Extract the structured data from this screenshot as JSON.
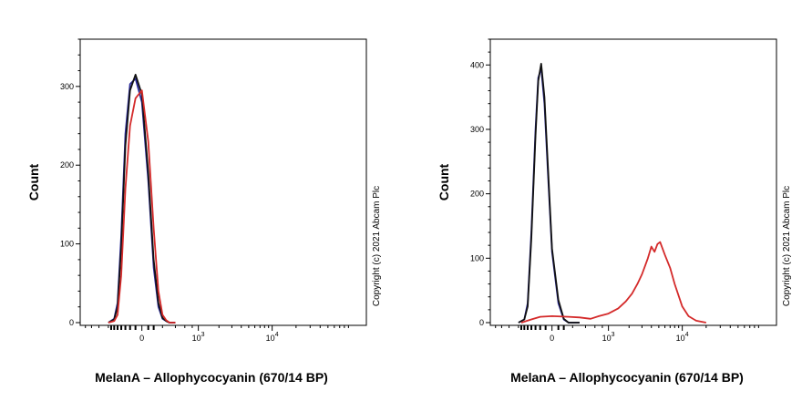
{
  "chart_data": [
    {
      "type": "line",
      "xlabel": "MelanA – Allophycocyanin (670/14 BP)",
      "ylabel": "Count",
      "copyright": "Copyright (c) 2021 Abcam Plc",
      "x_scale": "biexponential",
      "ylim": [
        0,
        360
      ],
      "y_ticks": [
        0,
        100,
        200,
        300
      ],
      "y_tick_labels": [
        "0",
        "100",
        "200",
        "300"
      ],
      "x_ticks": [
        0,
        1000,
        10000
      ],
      "x_tick_labels": [
        "0",
        "10^3",
        "10^4"
      ],
      "grid": false,
      "legend": "none",
      "series": [
        {
          "color": "#2a2a9a",
          "x": [
            -400,
            -300,
            -250,
            -200,
            -150,
            -100,
            -50,
            0,
            50,
            100,
            150,
            200,
            250,
            300,
            400
          ],
          "y": [
            0,
            5,
            25,
            110,
            240,
            303,
            310,
            280,
            180,
            70,
            20,
            5,
            2,
            0,
            0
          ]
        },
        {
          "color": "#111111",
          "x": [
            -400,
            -300,
            -250,
            -200,
            -150,
            -100,
            -50,
            0,
            50,
            100,
            150,
            200,
            250,
            300,
            400
          ],
          "y": [
            0,
            4,
            20,
            95,
            225,
            295,
            315,
            290,
            190,
            80,
            25,
            6,
            2,
            0,
            0
          ]
        },
        {
          "color": "#d42a2a",
          "x": [
            -400,
            -300,
            -250,
            -200,
            -150,
            -100,
            -50,
            0,
            50,
            100,
            150,
            200,
            250,
            300,
            400
          ],
          "y": [
            0,
            2,
            10,
            60,
            170,
            250,
            285,
            295,
            230,
            120,
            40,
            10,
            3,
            0,
            0
          ]
        }
      ]
    },
    {
      "type": "line",
      "xlabel": "MelanA – Allophycocyanin (670/14 BP)",
      "ylabel": "Count",
      "copyright": "Copyright (c) 2021 Abcam Plc",
      "x_scale": "biexponential",
      "ylim": [
        0,
        440
      ],
      "y_ticks": [
        0,
        100,
        200,
        300,
        400
      ],
      "y_tick_labels": [
        "0",
        "100",
        "200",
        "300",
        "400"
      ],
      "x_ticks": [
        0,
        1000,
        10000
      ],
      "x_tick_labels": [
        "0",
        "10^3",
        "10^4"
      ],
      "grid": false,
      "legend": "none",
      "series": [
        {
          "color": "#2a2a9a",
          "x": [
            -400,
            -300,
            -250,
            -200,
            -150,
            -120,
            -90,
            -60,
            -30,
            0,
            50,
            100,
            150,
            300
          ],
          "y": [
            0,
            5,
            30,
            140,
            300,
            380,
            395,
            340,
            230,
            110,
            30,
            5,
            0,
            0
          ]
        },
        {
          "color": "#111111",
          "x": [
            -400,
            -300,
            -250,
            -200,
            -150,
            -120,
            -90,
            -60,
            -30,
            0,
            50,
            100,
            150,
            300
          ],
          "y": [
            0,
            5,
            25,
            130,
            290,
            375,
            402,
            350,
            240,
            115,
            35,
            6,
            0,
            0
          ]
        },
        {
          "color": "#d42a2a",
          "x": [
            -350,
            -200,
            -100,
            0,
            150,
            300,
            500,
            700,
            1000,
            1400,
            1800,
            2200,
            2600,
            3000,
            3300,
            3600,
            4000,
            4400,
            4800,
            5200,
            6000,
            7000,
            8000,
            10000,
            12000,
            15000,
            20000
          ],
          "y": [
            0,
            5,
            9,
            10,
            9,
            8,
            6,
            10,
            14,
            22,
            33,
            45,
            60,
            75,
            88,
            100,
            118,
            110,
            122,
            125,
            105,
            85,
            60,
            25,
            10,
            3,
            0
          ]
        }
      ]
    }
  ]
}
